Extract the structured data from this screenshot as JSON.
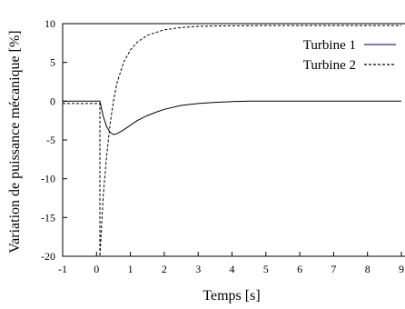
{
  "chart_data": {
    "type": "line",
    "title": "",
    "xlabel": "Temps [s]",
    "ylabel": "Variation de puissance mécanique [%]",
    "xlim": [
      -1,
      9
    ],
    "ylim": [
      -20,
      10
    ],
    "xticks": [
      "-1",
      "0",
      "1",
      "2",
      "3",
      "4",
      "5",
      "6",
      "7",
      "8",
      "9"
    ],
    "yticks": [
      "10",
      "5",
      "0",
      "-5",
      "-10",
      "-15",
      "-20"
    ],
    "grid": false,
    "legend_position": "top-right",
    "series": [
      {
        "name": "Turbine 1",
        "color": "#1f2f9c",
        "style": "solid",
        "x": [
          -1,
          0.1,
          0.1,
          0.2,
          0.3,
          0.4,
          0.5,
          0.6,
          0.8,
          1.0,
          1.2,
          1.5,
          1.8,
          2.0,
          2.5,
          3.0,
          3.5,
          4.0,
          4.5,
          5,
          6,
          7,
          8,
          9
        ],
        "values": [
          0,
          0,
          0,
          -2.0,
          -3.3,
          -4.0,
          -4.3,
          -4.2,
          -3.7,
          -3.1,
          -2.5,
          -1.85,
          -1.35,
          -1.05,
          -0.55,
          -0.3,
          -0.15,
          -0.05,
          0,
          0,
          0,
          0,
          0,
          0
        ]
      },
      {
        "name": "Turbine 2",
        "color": "#000000",
        "style": "dashed",
        "x": [
          -1,
          0.1,
          0.1,
          0.2,
          0.3,
          0.4,
          0.5,
          0.6,
          0.8,
          1.0,
          1.2,
          1.5,
          2.0,
          2.5,
          3.0,
          3.5,
          4.0,
          5,
          6,
          7,
          8,
          9
        ],
        "values": [
          -0.3,
          -0.3,
          -20,
          -12.0,
          -7.0,
          -3.0,
          0,
          2.3,
          5.0,
          6.6,
          7.6,
          8.5,
          9.2,
          9.5,
          9.65,
          9.7,
          9.72,
          9.75,
          9.75,
          9.75,
          9.75,
          9.75
        ]
      }
    ]
  }
}
